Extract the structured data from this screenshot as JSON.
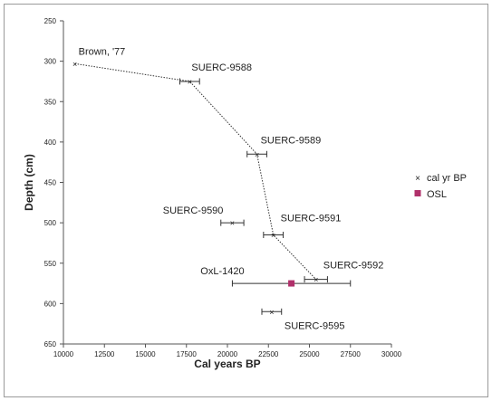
{
  "chart_data": {
    "type": "scatter",
    "xlabel": "Cal years BP",
    "ylabel": "Depth (cm)",
    "xlim": [
      10000,
      30000
    ],
    "ylim": [
      250,
      650
    ],
    "y_inverted": true,
    "xticks": [
      10000,
      12500,
      15000,
      17500,
      20000,
      22500,
      25000,
      27500,
      30000
    ],
    "yticks": [
      250,
      300,
      350,
      400,
      450,
      500,
      550,
      600,
      650
    ],
    "grid": false,
    "legend_position": "right",
    "series": [
      {
        "name": "cal yr BP",
        "marker": "x",
        "connected_line": "dotted",
        "color": "#222222",
        "points": [
          {
            "label": "Brown, '77",
            "x": 10700,
            "y": 303,
            "xerr": 0,
            "connected": true
          },
          {
            "label": "SUERC-9588",
            "x": 17700,
            "y": 325,
            "xerr": 600,
            "connected": true
          },
          {
            "label": "SUERC-9589",
            "x": 21800,
            "y": 415,
            "xerr": 600,
            "connected": true
          },
          {
            "label": "SUERC-9591",
            "x": 22800,
            "y": 515,
            "xerr": 600,
            "connected": true
          },
          {
            "label": "SUERC-9592",
            "x": 25400,
            "y": 570,
            "xerr": 700,
            "connected": true
          },
          {
            "label": "SUERC-9590",
            "x": 20300,
            "y": 500,
            "xerr": 700,
            "connected": false
          },
          {
            "label": "SUERC-9595",
            "x": 22700,
            "y": 610,
            "xerr": 600,
            "connected": false
          }
        ]
      },
      {
        "name": "OSL",
        "marker": "square",
        "color": "#b0306a",
        "points": [
          {
            "label": "OxL-1420",
            "x": 23900,
            "y": 575,
            "xerr": 3600
          }
        ]
      }
    ]
  }
}
